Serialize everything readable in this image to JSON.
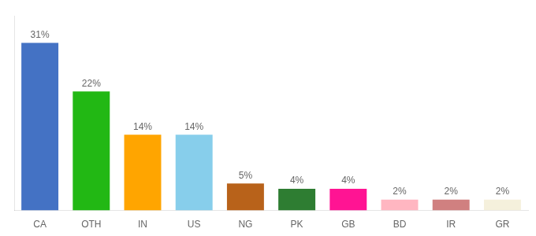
{
  "chart_data": {
    "type": "bar",
    "categories": [
      "CA",
      "OTH",
      "IN",
      "US",
      "NG",
      "PK",
      "GB",
      "BD",
      "IR",
      "GR"
    ],
    "values": [
      31,
      22,
      14,
      14,
      5,
      4,
      4,
      2,
      2,
      2
    ],
    "value_labels": [
      "31%",
      "22%",
      "14%",
      "14%",
      "5%",
      "4%",
      "4%",
      "2%",
      "2%",
      "2%"
    ],
    "colors": [
      "#4472C4",
      "#22B814",
      "#FFA500",
      "#87CEEB",
      "#B8621A",
      "#2E7D32",
      "#FF1493",
      "#FFB6C1",
      "#D08080",
      "#F5F0DC"
    ],
    "ylim": [
      0,
      36
    ],
    "data_labels": true,
    "tick_labels": "x",
    "grid": false
  }
}
